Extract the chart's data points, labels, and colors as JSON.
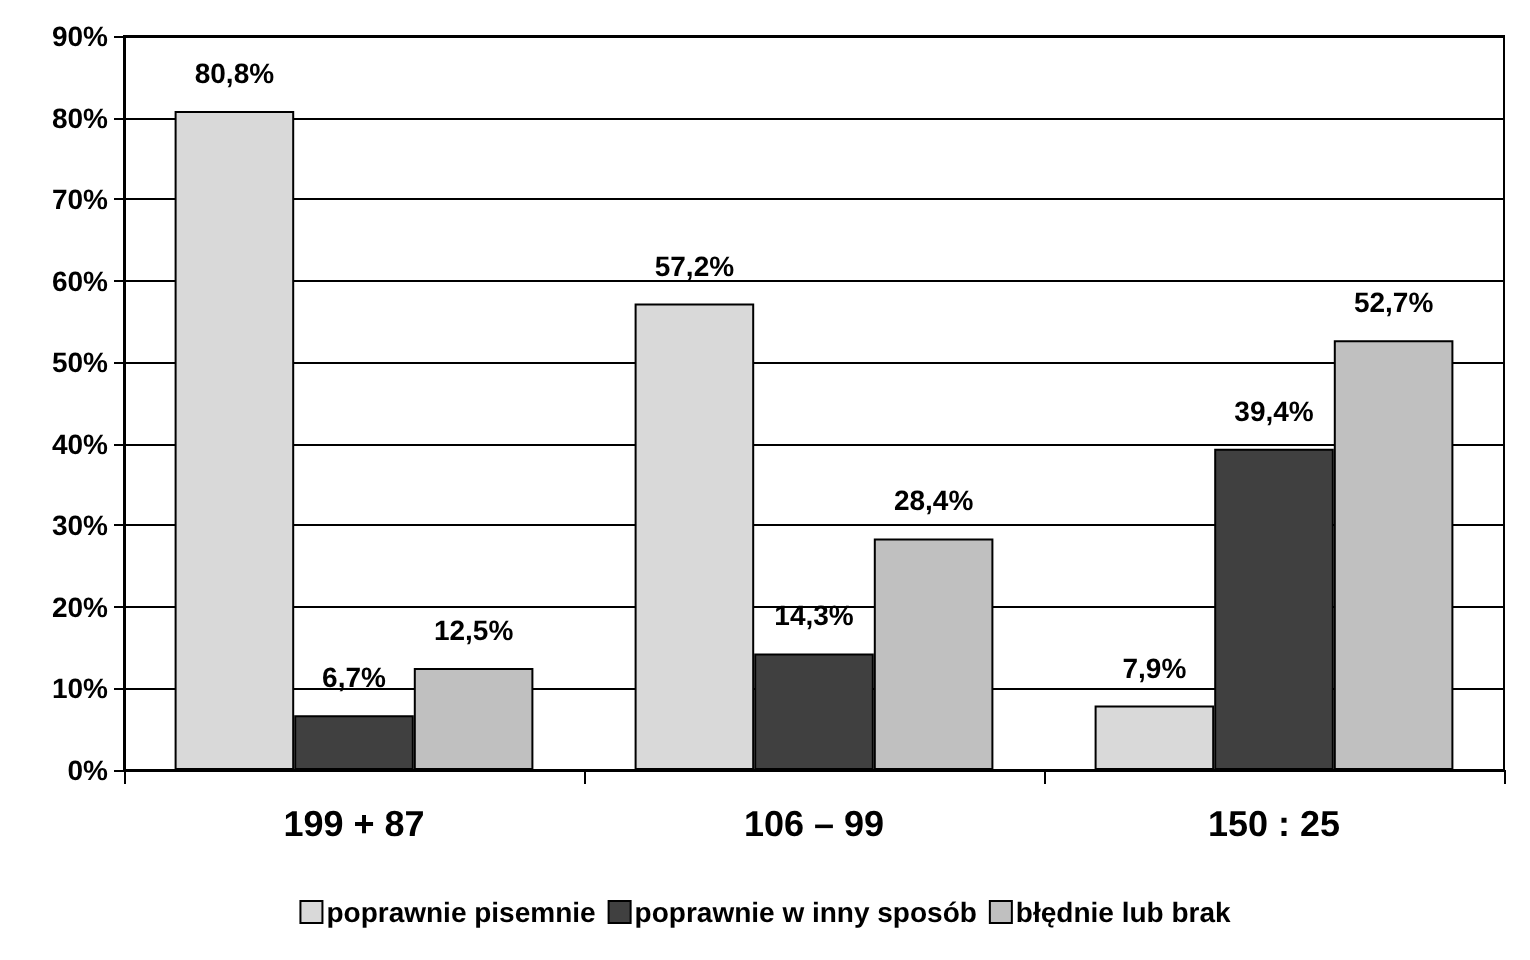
{
  "chart_data": {
    "type": "bar",
    "categories": [
      "199 + 87",
      "106 – 99",
      "150 : 25"
    ],
    "series": [
      {
        "name": "poprawnie pisemnie",
        "color": "#d9d9d9",
        "values": [
          80.8,
          57.2,
          7.9
        ],
        "value_labels": [
          "80,8%",
          "57,2%",
          "7,9%"
        ]
      },
      {
        "name": "poprawnie w inny sposób",
        "color": "#404040",
        "values": [
          6.7,
          14.3,
          39.4
        ],
        "value_labels": [
          "6,7%",
          "14,3%",
          "39,4%"
        ]
      },
      {
        "name": "błędnie lub brak",
        "color": "#c0c0c0",
        "values": [
          12.5,
          28.4,
          52.7
        ],
        "value_labels": [
          "12,5%",
          "28,4%",
          "52,7%"
        ]
      }
    ],
    "ylim": [
      0,
      90
    ],
    "yticks": [
      {
        "value": 0,
        "label": "0%"
      },
      {
        "value": 10,
        "label": "10%"
      },
      {
        "value": 20,
        "label": "20%"
      },
      {
        "value": 30,
        "label": "30%"
      },
      {
        "value": 40,
        "label": "40%"
      },
      {
        "value": 50,
        "label": "50%"
      },
      {
        "value": 60,
        "label": "60%"
      },
      {
        "value": 70,
        "label": "70%"
      },
      {
        "value": 80,
        "label": "80%"
      },
      {
        "value": 90,
        "label": "90%"
      }
    ],
    "grid": "y",
    "legend": "bottom"
  }
}
